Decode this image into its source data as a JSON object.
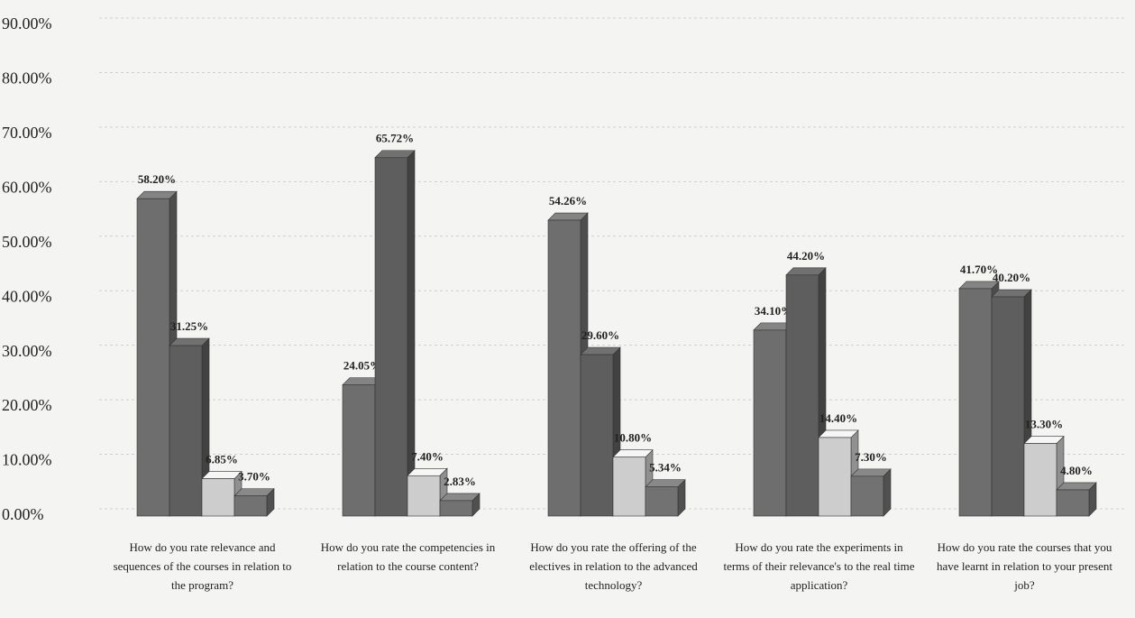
{
  "chart_data": {
    "type": "bar3d",
    "categories": [
      "How do you rate relevance and sequences of the courses in relation to the program?",
      "How do you rate the competencies in relation to the course content?",
      "How do you rate the offering of the electives in relation to the advanced technology?",
      "How do you rate the experiments in terms of their relevance's to the real time application?",
      "How do you rate the courses that you have learnt in relation to your present job?"
    ],
    "series": [
      {
        "color": "#6e6e6e",
        "values": [
          58.2,
          24.05,
          54.26,
          34.1,
          41.7
        ],
        "value_labels": [
          "58.20%",
          "24.05%",
          "54.26%",
          "34.10%",
          "41.70%"
        ]
      },
      {
        "color": "#5e5e5e",
        "values": [
          31.25,
          65.72,
          29.6,
          44.2,
          40.2
        ],
        "value_labels": [
          "31.25%",
          "65.72%",
          "29.60%",
          "44.20%",
          "40.20%"
        ]
      },
      {
        "color": "#cdcdcd",
        "values": [
          6.85,
          7.4,
          10.8,
          14.4,
          13.3
        ],
        "value_labels": [
          "6.85%",
          "7.40%",
          "10.80%",
          "14.40%",
          "13.30%"
        ]
      },
      {
        "color": "#727272",
        "values": [
          3.7,
          2.83,
          5.34,
          7.3,
          4.8
        ],
        "value_labels": [
          "3.70%",
          "2.83%",
          "5.34%",
          "7.30%",
          "4.80%"
        ]
      }
    ],
    "ylim": [
      0,
      90
    ],
    "yticks": [
      {
        "value": 0,
        "label": "0.00%"
      },
      {
        "value": 10,
        "label": "10.00%"
      },
      {
        "value": 20,
        "label": "20.00%"
      },
      {
        "value": 30,
        "label": "30.00%"
      },
      {
        "value": 40,
        "label": "40.00%"
      },
      {
        "value": 50,
        "label": "50.00%"
      },
      {
        "value": 60,
        "label": "60.00%"
      },
      {
        "value": 70,
        "label": "70.00%"
      },
      {
        "value": 80,
        "label": "80.00%"
      },
      {
        "value": 90,
        "label": "90.00%"
      }
    ],
    "grid": true
  }
}
